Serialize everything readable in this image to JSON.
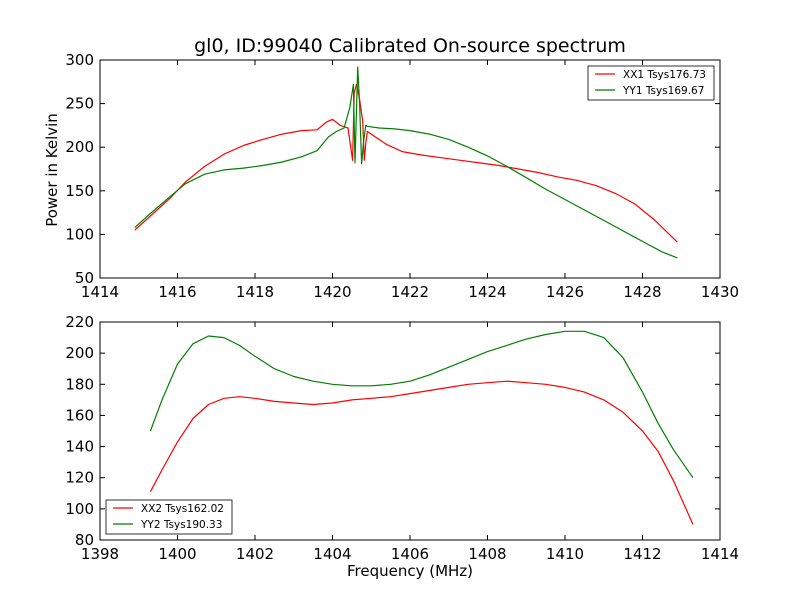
{
  "chart_data": [
    {
      "type": "line",
      "title": "gl0, ID:99040 Calibrated On-source spectrum",
      "xlabel": "",
      "ylabel": "Power in Kelvin",
      "xlim": [
        1414,
        1430
      ],
      "ylim": [
        50,
        300
      ],
      "xticks": [
        "1414",
        "1416",
        "1418",
        "1420",
        "1422",
        "1424",
        "1426",
        "1428",
        "1430"
      ],
      "yticks": [
        "50",
        "100",
        "150",
        "200",
        "250",
        "300"
      ],
      "legend": "top-right",
      "grid": false,
      "series": [
        {
          "name": "XX1 Tsys176.73",
          "color": "#ff0000",
          "x": [
            1414.9,
            1415.3,
            1415.8,
            1416.2,
            1416.7,
            1417.2,
            1417.7,
            1418.2,
            1418.7,
            1419.2,
            1419.6,
            1419.85,
            1420.0,
            1420.2,
            1420.4,
            1420.52,
            1420.56,
            1420.62,
            1420.7,
            1420.78,
            1420.82,
            1420.86,
            1420.9,
            1421.1,
            1421.4,
            1421.8,
            1422.3,
            1422.8,
            1423.3,
            1423.8,
            1424.3,
            1424.8,
            1425.3,
            1425.8,
            1426.3,
            1426.8,
            1427.3,
            1427.8,
            1428.3,
            1428.9
          ],
          "y": [
            105,
            121,
            141,
            160,
            178,
            192,
            202,
            209,
            215,
            219,
            220,
            229,
            232,
            225,
            222,
            185,
            262,
            272,
            255,
            230,
            185,
            205,
            218,
            212,
            203,
            195,
            191,
            188,
            185,
            182,
            179,
            175,
            171,
            166,
            162,
            156,
            147,
            135,
            117,
            91
          ]
        },
        {
          "name": "YY1 Tsys169.67",
          "color": "#008000",
          "x": [
            1414.9,
            1415.3,
            1415.8,
            1416.2,
            1416.7,
            1417.2,
            1417.7,
            1418.2,
            1418.7,
            1419.2,
            1419.6,
            1419.9,
            1420.1,
            1420.3,
            1420.45,
            1420.54,
            1420.58,
            1420.65,
            1420.7,
            1420.75,
            1420.8,
            1420.86,
            1420.9,
            1421.2,
            1421.6,
            1422.0,
            1422.5,
            1423.0,
            1423.5,
            1424.0,
            1424.5,
            1425.0,
            1425.5,
            1426.0,
            1426.5,
            1427.0,
            1427.5,
            1428.0,
            1428.5,
            1428.9
          ],
          "y": [
            108,
            124,
            143,
            158,
            169,
            174,
            176,
            179,
            183,
            189,
            196,
            212,
            218,
            222,
            246,
            272,
            182,
            292,
            250,
            181,
            206,
            225,
            224,
            222,
            221,
            219,
            215,
            209,
            200,
            190,
            178,
            165,
            152,
            140,
            128,
            116,
            104,
            92,
            80,
            73
          ]
        }
      ]
    },
    {
      "type": "line",
      "title": "",
      "xlabel": "Frequency (MHz)",
      "ylabel": "",
      "xlim": [
        1398,
        1414
      ],
      "ylim": [
        80,
        220
      ],
      "xticks": [
        "1398",
        "1400",
        "1402",
        "1404",
        "1406",
        "1408",
        "1410",
        "1412",
        "1414"
      ],
      "yticks": [
        "80",
        "100",
        "120",
        "140",
        "160",
        "180",
        "200",
        "220"
      ],
      "legend": "bottom-left",
      "grid": false,
      "series": [
        {
          "name": "XX2 Tsys162.02",
          "color": "#ff0000",
          "x": [
            1399.3,
            1399.6,
            1400.0,
            1400.4,
            1400.8,
            1401.2,
            1401.6,
            1402.0,
            1402.5,
            1403.0,
            1403.5,
            1404.0,
            1404.5,
            1405.0,
            1405.5,
            1406.0,
            1406.5,
            1407.0,
            1407.5,
            1408.0,
            1408.5,
            1409.0,
            1409.5,
            1410.0,
            1410.5,
            1411.0,
            1411.5,
            1412.0,
            1412.4,
            1412.8,
            1413.3
          ],
          "y": [
            111,
            125,
            143,
            158,
            167,
            171,
            172,
            171,
            169,
            168,
            167,
            168,
            170,
            171,
            172,
            174,
            176,
            178,
            180,
            181,
            182,
            181,
            180,
            178,
            175,
            170,
            162,
            150,
            137,
            118,
            90
          ]
        },
        {
          "name": "YY2 Tsys190.33",
          "color": "#008000",
          "x": [
            1399.3,
            1399.6,
            1400.0,
            1400.4,
            1400.8,
            1401.2,
            1401.6,
            1402.0,
            1402.5,
            1403.0,
            1403.5,
            1404.0,
            1404.5,
            1405.0,
            1405.5,
            1406.0,
            1406.5,
            1407.0,
            1407.5,
            1408.0,
            1408.5,
            1409.0,
            1409.5,
            1410.0,
            1410.5,
            1411.0,
            1411.5,
            1412.0,
            1412.4,
            1412.8,
            1413.3
          ],
          "y": [
            150,
            170,
            193,
            206,
            211,
            210,
            205,
            198,
            190,
            185,
            182,
            180,
            179,
            179,
            180,
            182,
            186,
            191,
            196,
            201,
            205,
            209,
            212,
            214,
            214,
            210,
            197,
            175,
            155,
            138,
            120
          ]
        }
      ]
    }
  ]
}
